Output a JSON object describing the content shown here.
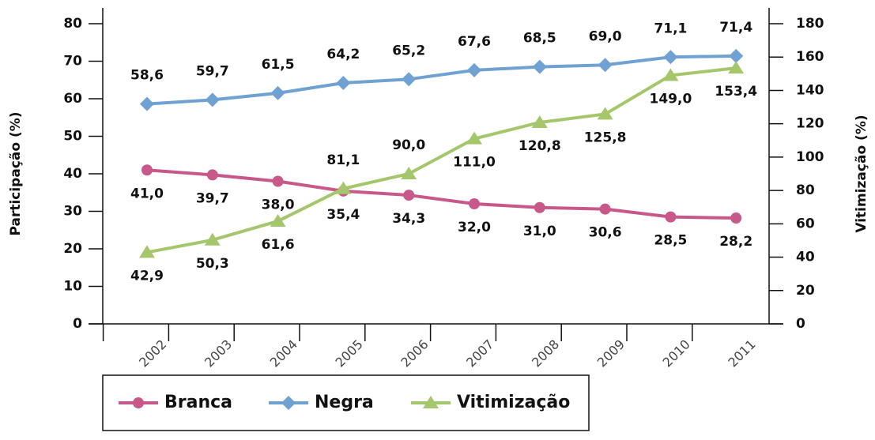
{
  "chart_data": {
    "type": "line",
    "categories": [
      "2002",
      "2003",
      "2004",
      "2005",
      "2006",
      "2007",
      "2008",
      "2009",
      "2010",
      "2011"
    ],
    "ylabel": "Participação (%)",
    "y2label": "Vitimização (%)",
    "ylim": [
      0,
      80
    ],
    "yticks": [
      0,
      10,
      20,
      30,
      40,
      50,
      60,
      70,
      80
    ],
    "y2lim": [
      0,
      180
    ],
    "y2ticks": [
      0,
      20,
      40,
      60,
      80,
      100,
      120,
      140,
      160,
      180
    ],
    "legend": "bottom",
    "series": [
      {
        "name": "Branca",
        "color": "#c8578a",
        "marker": "circle",
        "values": [
          41.0,
          39.7,
          38.0,
          35.4,
          34.3,
          32.0,
          31.0,
          30.6,
          28.5,
          28.2
        ],
        "value_labels": [
          "41,0",
          "39,7",
          "38,0",
          "35,4",
          "34,3",
          "32,0",
          "31,0",
          "30,6",
          "28,5",
          "28,2"
        ]
      },
      {
        "name": "Negra",
        "color": "#6fa1d2",
        "marker": "diamond",
        "values": [
          58.6,
          59.7,
          61.5,
          64.2,
          65.2,
          67.6,
          68.5,
          69.0,
          71.1,
          71.4
        ],
        "value_labels": [
          "58,6",
          "59,7",
          "61,5",
          "64,2",
          "65,2",
          "67,6",
          "68,5",
          "69,0",
          "71,1",
          "71,4"
        ]
      },
      {
        "name": "Vitimização",
        "color": "#a5c76b",
        "marker": "triangle",
        "axis": "y2",
        "values": [
          42.9,
          50.3,
          61.6,
          81.1,
          90.0,
          111.0,
          120.8,
          125.8,
          149.0,
          153.4
        ],
        "value_labels": [
          "42,9",
          "50,3",
          "61,6",
          "81,1",
          "90,0",
          "111,0",
          "120,8",
          "125,8",
          "149,0",
          "153,4"
        ]
      }
    ]
  }
}
